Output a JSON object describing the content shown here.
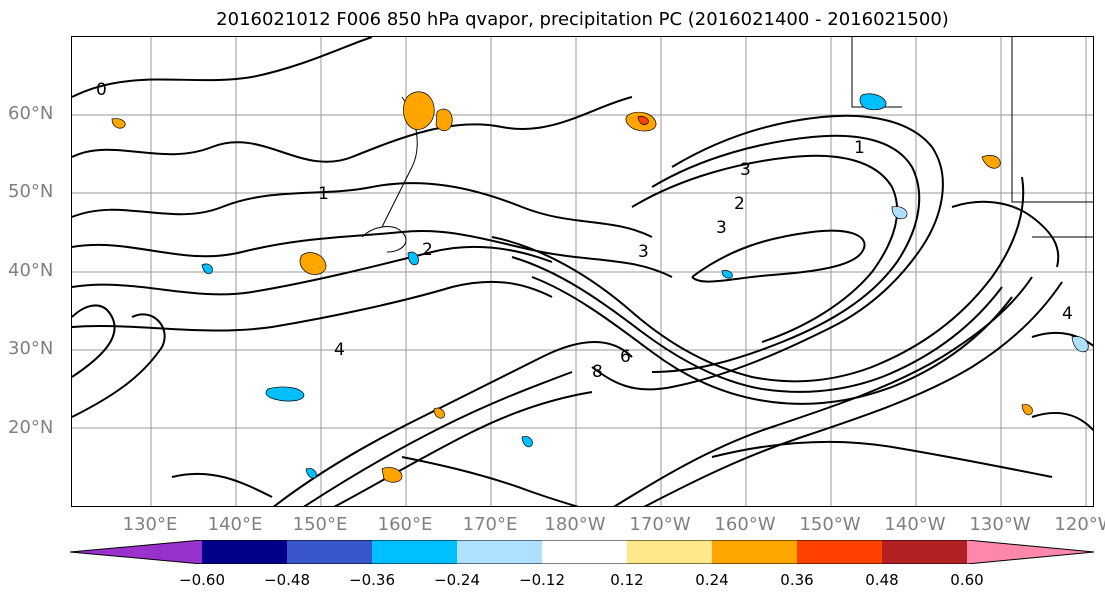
{
  "title": "2016021012 F006 850 hPa qvapor, precipitation PC (2016021400 - 2016021500)",
  "lat_labels": [
    "60°N",
    "50°N",
    "40°N",
    "30°N",
    "20°N"
  ],
  "lon_labels": [
    "130°E",
    "140°E",
    "150°E",
    "160°E",
    "170°E",
    "180°W",
    "170°W",
    "160°W",
    "150°W",
    "140°W",
    "130°W",
    "120°W"
  ],
  "contour_labels": [
    "0",
    "1",
    "2",
    "3",
    "4",
    "6",
    "8",
    "3",
    "2",
    "1",
    "3",
    "4"
  ],
  "colorbar": {
    "ticks": [
      "−0.60",
      "−0.48",
      "−0.36",
      "−0.24",
      "−0.12",
      "0.12",
      "0.24",
      "0.36",
      "0.48",
      "0.60"
    ],
    "colors": [
      "#9932cc",
      "#00008b",
      "#3656c9",
      "#00bfff",
      "#b0e0ff",
      "#ffffff",
      "#ffe88a",
      "#ffa500",
      "#ff4000",
      "#b22222",
      "#ff88aa"
    ]
  }
}
